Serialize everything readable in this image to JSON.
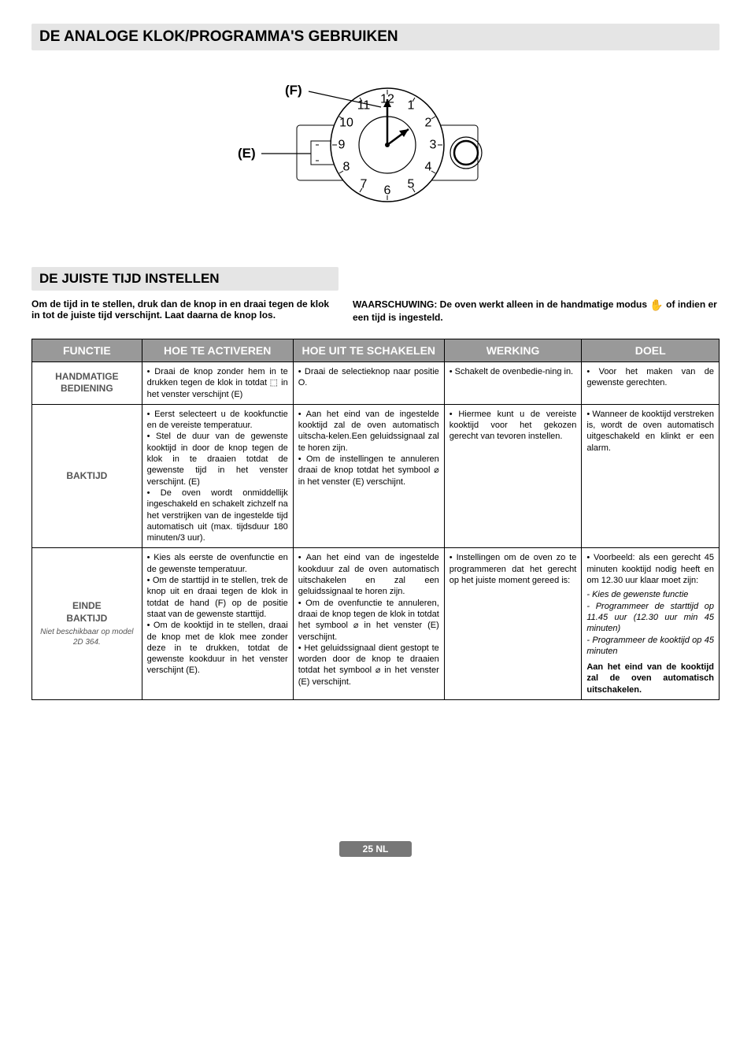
{
  "title": "DE ANALOGE KLOK/PROGRAMMA'S GEBRUIKEN",
  "diagram": {
    "label_f": "(F)",
    "label_e": "(E)",
    "numbers": [
      "12",
      "1",
      "2",
      "3",
      "4",
      "5",
      "6",
      "7",
      "8",
      "9",
      "10",
      "11"
    ]
  },
  "subtitle": "DE JUISTE TIJD INSTELLEN",
  "intro_left": "Om de tijd in te stellen, druk dan de knop in en draai tegen de klok in tot de juiste tijd verschijnt. Laat daarna de knop los.",
  "intro_right_a": "WAARSCHUWING: De oven werkt alleen in de handmatige modus ",
  "intro_right_b": " of indien er een tijd is ingesteld.",
  "headers": {
    "c1": "FUNCTIE",
    "c2": "HOE TE ACTIVEREN",
    "c3": "HOE UIT TE SCHAKELEN",
    "c4": "WERKING",
    "c5": "DOEL"
  },
  "col_widths": {
    "c1": "16%",
    "c2": "22%",
    "c3": "22%",
    "c4": "20%",
    "c5": "20%"
  },
  "rows": [
    {
      "name": "HANDMATIGE BEDIENING",
      "sub": "",
      "activate": "• Draai de knop zonder hem in te drukken tegen de klok in totdat ⬚ in het venster verschijnt (E)",
      "deactivate": "• Draai de selectieknop naar positie O.",
      "working": "• Schakelt de ovenbedie-ning in.",
      "goal": "• Voor het maken van de gewenste gerechten."
    },
    {
      "name": "BAKTIJD",
      "sub": "",
      "activate": "• Eerst selecteert u de kookfunctie en de vereiste temperatuur.\n• Stel de duur van de gewenste kooktijd in door de knop tegen de klok in te draaien totdat de gewenste tijd in het venster verschijnt. (E)\n• De oven wordt onmiddellijk ingeschakeld en schakelt zichzelf na het verstrijken van de ingestelde tijd automatisch uit (max. tijdsduur 180 minuten/3 uur).",
      "deactivate": "• Aan het eind van de ingestelde kooktijd zal de oven automatisch uitscha-kelen.Een geluidssignaal zal te horen zijn.\n• Om de instellingen te annuleren draai de knop totdat het symbool ⌀ in het venster (E) verschijnt.",
      "working": "• Hiermee kunt u de vereiste kooktijd voor het gekozen gerecht van tevoren instellen.",
      "goal": "• Wanneer de kooktijd verstreken is, wordt de oven automatisch uitgeschakeld en klinkt er een alarm."
    },
    {
      "name": "EINDE BAKTIJD",
      "sub": "Niet beschikbaar op model 2D 364.",
      "activate": "• Kies als eerste de ovenfunctie en de gewenste temperatuur.\n• Om de starttijd in te stellen, trek de knop uit en draai tegen de klok in totdat de hand (F) op de positie staat van de gewenste starttijd.\n• Om de kooktijd in te stellen, draai de knop met de klok mee zonder deze in te drukken, totdat de gewenste kookduur in het venster verschijnt (E).",
      "deactivate": "• Aan het eind van de ingestelde kookduur zal de oven automatisch uitschakelen en zal een geluidssignaal te horen zijn.\n• Om de ovenfunctie te annuleren, draai de knop tegen de klok in totdat het symbool ⌀ in het venster (E) verschijnt.\n• Het geluidssignaal dient gestopt te worden door de knop te draaien totdat het symbool ⌀ in het venster (E) verschijnt.",
      "working": "• Instellingen om de oven zo te programmeren dat het gerecht op het juiste moment gereed is:",
      "goal_intro": "• Voorbeeld: als een gerecht 45 minuten kooktijd nodig heeft en om 12.30 uur klaar moet zijn:",
      "goal_list": [
        "- Kies de gewenste functie",
        "- Programmeer de starttijd op 11.45 uur (12.30 uur min 45 minuten)",
        "- Programmeer de kooktijd op 45 minuten"
      ],
      "goal_tail": "Aan het eind van de kooktijd zal de oven automatisch uitschakelen."
    }
  ],
  "footer": "25 NL"
}
